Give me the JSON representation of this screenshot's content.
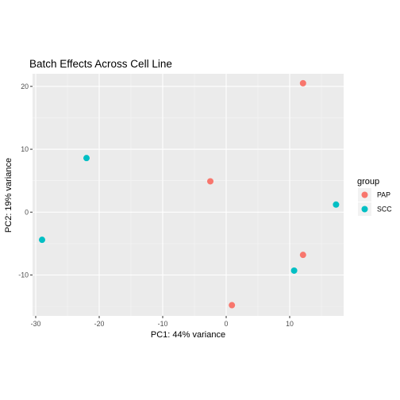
{
  "chart_data": {
    "type": "scatter",
    "title": "Batch Effects Across Cell Line",
    "xlabel": "PC1: 44% variance",
    "ylabel": "PC2: 19% variance",
    "xlim": [
      -30.5,
      18.5
    ],
    "ylim": [
      -16.5,
      22.0
    ],
    "x_ticks": [
      -30,
      -20,
      -10,
      0,
      10
    ],
    "y_ticks": [
      -10,
      0,
      10,
      20
    ],
    "grid": true,
    "legend": {
      "title": "group",
      "position": "right"
    },
    "series": [
      {
        "name": "PAP",
        "color": "#F8766D",
        "points": [
          {
            "x": 12.1,
            "y": 20.5
          },
          {
            "x": -2.5,
            "y": 4.9
          },
          {
            "x": 12.1,
            "y": -6.8
          },
          {
            "x": 0.9,
            "y": -14.8
          }
        ]
      },
      {
        "name": "SCC",
        "color": "#00BFC4",
        "points": [
          {
            "x": -22.0,
            "y": 8.6
          },
          {
            "x": 17.3,
            "y": 1.2
          },
          {
            "x": -29.0,
            "y": -4.4
          },
          {
            "x": 10.7,
            "y": -9.3
          }
        ]
      }
    ]
  }
}
